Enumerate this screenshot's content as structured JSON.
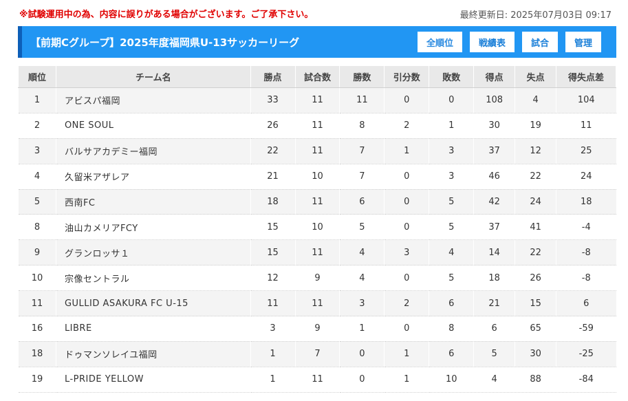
{
  "notice": "※試験運用中の為、内容に誤りがある場合がございます。ご了承下さい。",
  "updated": "最終更新日: 2025年07月03日 09:17",
  "header": {
    "title": "【前期Cグループ】2025年度福岡県U-13サッカーリーグ",
    "buttons": [
      "全順位",
      "戦績表",
      "試合",
      "管理"
    ]
  },
  "table": {
    "columns": [
      "順位",
      "チーム名",
      "勝点",
      "試合数",
      "勝数",
      "引分数",
      "敗数",
      "得点",
      "失点",
      "得失点差"
    ],
    "rows": [
      [
        "1",
        "アビスパ福岡",
        "33",
        "11",
        "11",
        "0",
        "0",
        "108",
        "4",
        "104"
      ],
      [
        "2",
        "ONE SOUL",
        "26",
        "11",
        "8",
        "2",
        "1",
        "30",
        "19",
        "11"
      ],
      [
        "3",
        "バルサアカデミー福岡",
        "22",
        "11",
        "7",
        "1",
        "3",
        "37",
        "12",
        "25"
      ],
      [
        "4",
        "久留米アザレア",
        "21",
        "10",
        "7",
        "0",
        "3",
        "46",
        "22",
        "24"
      ],
      [
        "5",
        "西南FC",
        "18",
        "11",
        "6",
        "0",
        "5",
        "42",
        "24",
        "18"
      ],
      [
        "8",
        "油山カメリアFCY",
        "15",
        "10",
        "5",
        "0",
        "5",
        "37",
        "41",
        "-4"
      ],
      [
        "9",
        "グランロッサ１",
        "15",
        "11",
        "4",
        "3",
        "4",
        "14",
        "22",
        "-8"
      ],
      [
        "10",
        "宗像セントラル",
        "12",
        "9",
        "4",
        "0",
        "5",
        "18",
        "26",
        "-8"
      ],
      [
        "11",
        "GULLID ASAKURA FC U-15",
        "11",
        "11",
        "3",
        "2",
        "6",
        "21",
        "15",
        "6"
      ],
      [
        "16",
        "LIBRE",
        "3",
        "9",
        "1",
        "0",
        "8",
        "6",
        "65",
        "-59"
      ],
      [
        "18",
        "ドゥマンソレイユ福岡",
        "1",
        "7",
        "0",
        "1",
        "6",
        "5",
        "30",
        "-25"
      ],
      [
        "19",
        "L-PRIDE YELLOW",
        "1",
        "11",
        "0",
        "1",
        "10",
        "4",
        "88",
        "-84"
      ]
    ]
  }
}
